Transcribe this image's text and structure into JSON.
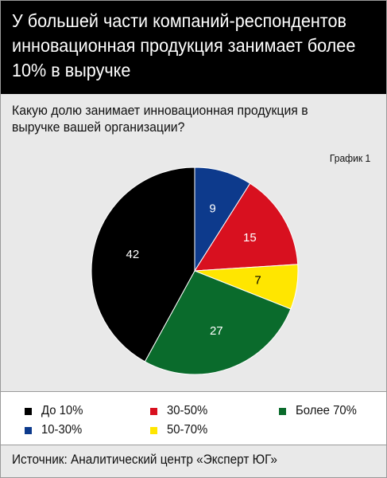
{
  "header": {
    "title_lines": [
      "У большей части компаний-респондентов",
      "инновационная продукция занимает более",
      "10% в выручке"
    ]
  },
  "question": {
    "lines": [
      "Какую долю занимает инновационная продукция в",
      "выручке вашей организации?"
    ]
  },
  "chart_label": "График 1",
  "chart_data": {
    "type": "pie",
    "title": "Какую долю занимает инновационная продукция в выручке вашей организации?",
    "slices": [
      {
        "label": "10-30%",
        "value": 9,
        "color": "#0d3a8c"
      },
      {
        "label": "30-50%",
        "value": 15,
        "color": "#d8101f"
      },
      {
        "label": "50-70%",
        "value": 7,
        "color": "#ffe600"
      },
      {
        "label": "Более 70%",
        "value": 27,
        "color": "#0a6b2c"
      },
      {
        "label": "До 10%",
        "value": 42,
        "color": "#000000"
      }
    ],
    "start_angle": "12 o'clock",
    "direction": "clockwise",
    "legend_position": "bottom"
  },
  "legend": [
    {
      "label": "До 10%",
      "color": "#000000"
    },
    {
      "label": "30-50%",
      "color": "#d8101f"
    },
    {
      "label": "Более 70%",
      "color": "#0a6b2c"
    },
    {
      "label": "10-30%",
      "color": "#0d3a8c"
    },
    {
      "label": "50-70%",
      "color": "#ffe600"
    }
  ],
  "source": "Источник: Аналитический центр «Эксперт ЮГ»"
}
